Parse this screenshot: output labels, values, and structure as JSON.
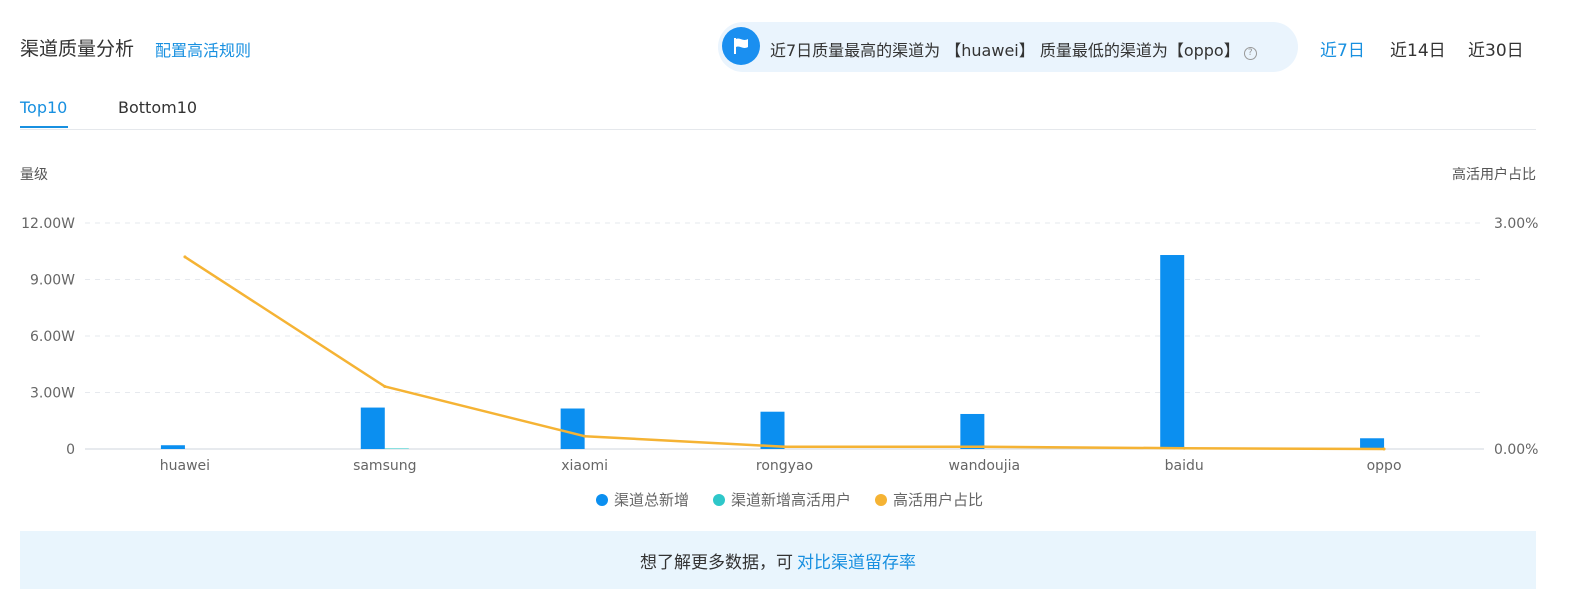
{
  "header": {
    "title": "渠道质量分析",
    "config_link": "配置高活规则"
  },
  "banner": {
    "text": "近7日质量最高的渠道为 【huawei】 质量最低的渠道为【oppo】",
    "help": "?"
  },
  "ranges": [
    "近7日",
    "近14日",
    "近30日"
  ],
  "tabs": [
    "Top10",
    "Bottom10"
  ],
  "footer": {
    "text": "想了解更多数据，可",
    "link": "对比渠道留存率"
  },
  "colors": {
    "accent": "#1890e0",
    "bar_total": "#0b8ff0",
    "bar_active": "#2ec7c9",
    "line": "#f5b334"
  },
  "chart_data": {
    "type": "bar",
    "categories": [
      "huawei",
      "samsung",
      "xiaomi",
      "rongyao",
      "wandoujia",
      "baidu",
      "oppo"
    ],
    "series": [
      {
        "name": "渠道总新增",
        "type": "bar",
        "axis": "left",
        "values": [
          2000,
          22000,
          21500,
          19800,
          18600,
          103000,
          5700
        ]
      },
      {
        "name": "渠道新增高活用户",
        "type": "bar",
        "axis": "left",
        "values": [
          0,
          300,
          0,
          0,
          0,
          0,
          0
        ]
      },
      {
        "name": "高活用户占比",
        "type": "line",
        "axis": "right",
        "values": [
          2.55,
          0.83,
          0.17,
          0.03,
          0.03,
          0.01,
          0.0
        ]
      }
    ],
    "ylabel_left": "量级",
    "ylabel_right": "高活用户占比",
    "ylim_left": [
      0,
      120000
    ],
    "ylim_right": [
      0,
      3
    ],
    "yticks_left": [
      "0",
      "3.00W",
      "6.00W",
      "9.00W",
      "12.00W"
    ],
    "yticks_right": [
      "0.00%",
      "3.00%"
    ],
    "grid": true,
    "legend_position": "bottom"
  }
}
